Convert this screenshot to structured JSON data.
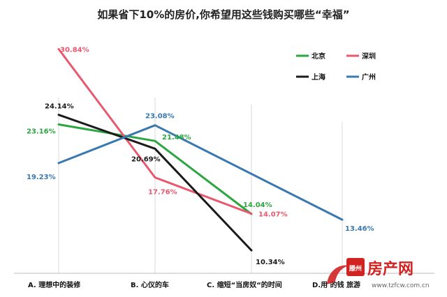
{
  "chart_data": {
    "type": "line",
    "title": "如果省下10%的房价,你希望用这些钱购买哪些“幸福”",
    "xlabel": "",
    "ylabel": "",
    "categories": [
      "A. 理想中的装修",
      "B. 心仪的车",
      "C. 缩短“当房奴“的时间",
      "D.用 的钱 旅游"
    ],
    "ylim": [
      8,
      33
    ],
    "grid": "vertical",
    "legend_position": "top-right",
    "series": [
      {
        "name": "北京",
        "color": "#2ca641",
        "values": [
          23.16,
          21.48,
          14.04,
          null
        ],
        "labels": [
          "23.16%",
          "21.48%",
          "14.04%",
          ""
        ]
      },
      {
        "name": "深圳",
        "color": "#e8586e",
        "values": [
          30.84,
          17.76,
          14.07,
          null
        ],
        "labels": [
          "30.84%",
          "17.76%",
          "14.07%",
          ""
        ]
      },
      {
        "name": "上海",
        "color": "#1a1a1a",
        "values": [
          24.14,
          20.69,
          10.34,
          null
        ],
        "labels": [
          "24.14%",
          "20.69%",
          "10.34%",
          ""
        ]
      },
      {
        "name": "广州",
        "color": "#3a78b0",
        "values": [
          19.23,
          23.08,
          null,
          13.46
        ],
        "labels": [
          "19.23%",
          "23.08%",
          "",
          "13.46%"
        ]
      }
    ]
  },
  "watermark": {
    "city": "滕州",
    "brand": "房产网",
    "url": "www.tzfcw.com.cn",
    "color": "#d22323"
  }
}
